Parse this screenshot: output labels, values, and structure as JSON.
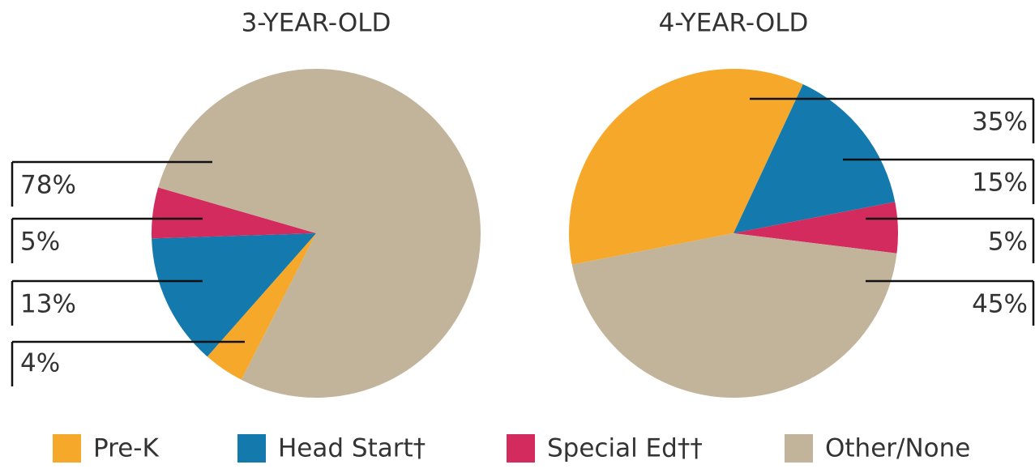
{
  "chart_data": [
    {
      "type": "pie",
      "title": "3-YEAR-OLD",
      "values": [
        4,
        13,
        5,
        78
      ],
      "value_labels": [
        "4%",
        "13%",
        "5%",
        "78%"
      ]
    },
    {
      "type": "pie",
      "title": "4-YEAR-OLD",
      "values": [
        35,
        15,
        5,
        45
      ],
      "value_labels": [
        "35%",
        "15%",
        "5%",
        "45%"
      ]
    }
  ],
  "legend": {
    "labels": [
      "Pre-K",
      "Head Start†",
      "Special Ed††",
      "Other/None"
    ],
    "colors": [
      "#f5a82a",
      "#1479ad",
      "#d42b5e",
      "#c2b49b"
    ]
  }
}
